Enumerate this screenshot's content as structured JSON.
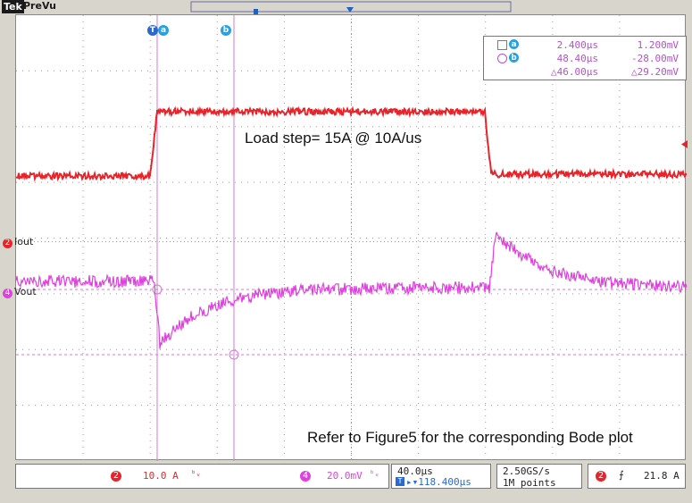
{
  "header": {
    "logo": "Tek",
    "mode": "PreVu"
  },
  "markers": {
    "a_label": "a",
    "b_label": "b",
    "t_label": "T"
  },
  "channels": {
    "ch2": {
      "number": "2",
      "name": "Iout",
      "scale": "10.0 A",
      "color": "#e8242a"
    },
    "ch4": {
      "number": "4",
      "name": "Vout",
      "scale": "20.0mV",
      "color": "#e040e0"
    }
  },
  "cursor_readout": {
    "row_a": {
      "time": "2.400µs",
      "value": "1.200mV"
    },
    "row_b": {
      "time": "48.40µs",
      "value": "-28.00mV"
    },
    "delta": {
      "time": "△46.00µs",
      "value": "△29.20mV"
    }
  },
  "annotations": {
    "load_step": "Load step= 15A @ 10A/us",
    "refer": "Refer to Figure5 for the corresponding Bode plot"
  },
  "status": {
    "ch2_scale": "10.0 A",
    "ch4_scale": "20.0mV",
    "timebase": "40.0µs",
    "position": "118.400µs",
    "sample_rate": "2.50GS/s",
    "record_length": "1M points",
    "trigger_channel": "2",
    "trigger_slope": "⨍",
    "trigger_level": "21.8 A"
  }
}
